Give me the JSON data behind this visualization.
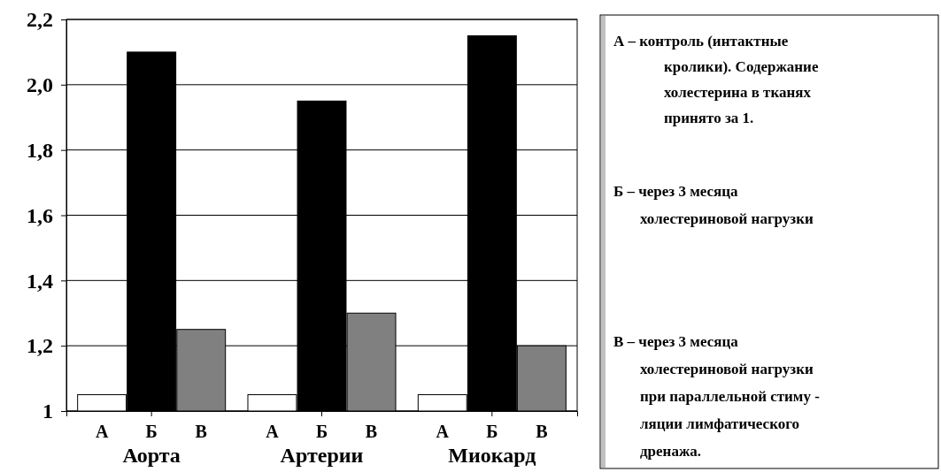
{
  "chart_data": {
    "type": "bar",
    "categories": [
      "Аорта",
      "Артерии",
      "Миокард"
    ],
    "series": [
      {
        "name": "А",
        "color": "#ffffff",
        "values": [
          1.05,
          1.05,
          1.05
        ]
      },
      {
        "name": "Б",
        "color": "#000000",
        "values": [
          2.1,
          1.95,
          2.15
        ]
      },
      {
        "name": "В",
        "color": "#808080",
        "values": [
          1.25,
          1.3,
          1.2
        ]
      }
    ],
    "ylim": [
      1,
      2.2
    ],
    "yticks": [
      1,
      {
        "value": 1.2,
        "label": "1,2"
      },
      {
        "value": 1.4,
        "label": "1,4"
      },
      {
        "value": 1.6,
        "label": "1,6"
      },
      {
        "value": 1.8,
        "label": "1,8"
      },
      {
        "value": 2,
        "label": "2,0"
      },
      {
        "value": 2.2,
        "label": "2,2"
      }
    ],
    "grid": "y",
    "annotations": [
      "А – контроль (интактные\nкролики). Содержание\nхолестерина в тканях\nпринято за 1.",
      "Б –  через 3 месяца\nхолестериновой нагрузки",
      "В –  через 3 месяца\nхолестериновой нагрузки\nпри параллельной стиму -\nляции лимфатического\nдренажа."
    ]
  }
}
